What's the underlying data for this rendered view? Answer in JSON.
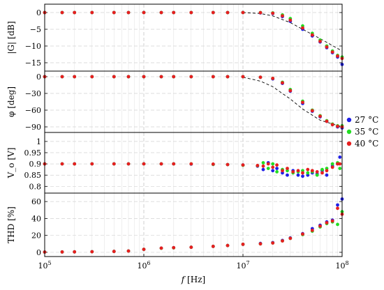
{
  "chart_data": {
    "type": "scatter",
    "x_scale": "log",
    "x_range_hz": [
      100000,
      100000000
    ],
    "x_ticks": [
      {
        "value": 100000,
        "base": "10",
        "exp": "5"
      },
      {
        "value": 1000000,
        "base": "10",
        "exp": "6"
      },
      {
        "value": 10000000,
        "base": "10",
        "exp": "7"
      },
      {
        "value": 100000000,
        "base": "10",
        "exp": "8"
      }
    ],
    "xlabel": {
      "italic": "f",
      "rest": " [Hz]"
    },
    "legend": {
      "placement": "right",
      "entries": [
        {
          "label": "27 °C",
          "color": "#1f1fe6"
        },
        {
          "label": "35 °C",
          "color": "#22dd22"
        },
        {
          "label": "40 °C",
          "color": "#e61f1f"
        }
      ]
    },
    "panels": [
      {
        "id": "gain",
        "ylabel": "|G| [dB]",
        "ylim": [
          -17.5,
          2.5
        ],
        "yticks": [
          "0",
          "−5",
          "−10",
          "−15"
        ],
        "ytick_values": [
          0,
          -5,
          -10,
          -15
        ],
        "reference": {
          "x": [
            10000000,
            15000000,
            20000000,
            30000000,
            40000000,
            60000000,
            100000000
          ],
          "y": [
            0,
            -0.3,
            -1.0,
            -3.0,
            -5.0,
            -7.8,
            -11.5
          ]
        },
        "series": [
          {
            "name": "27 °C",
            "x": [
              100000,
              150000,
              200000,
              300000,
              500000,
              700000,
              1000000,
              1500000,
              2000000,
              3000000,
              5000000,
              7000000,
              10000000,
              15000000,
              20000000,
              25000000,
              30000000,
              40000000,
              50000000,
              60000000,
              70000000,
              80000000,
              90000000,
              100000000
            ],
            "y": [
              0,
              0,
              0,
              0,
              0,
              0,
              0,
              0,
              0,
              0,
              0,
              0,
              0,
              -0.1,
              -0.3,
              -1.2,
              -2.6,
              -5.0,
              -7.0,
              -8.8,
              -10.5,
              -12.0,
              -13.3,
              -15.5
            ]
          },
          {
            "name": "35 °C",
            "x": [
              100000,
              150000,
              200000,
              300000,
              500000,
              700000,
              1000000,
              1500000,
              2000000,
              3000000,
              5000000,
              7000000,
              10000000,
              15000000,
              20000000,
              25000000,
              30000000,
              40000000,
              50000000,
              60000000,
              70000000,
              80000000,
              90000000,
              100000000
            ],
            "y": [
              0,
              0,
              0,
              0,
              0,
              0,
              0,
              0,
              0,
              0,
              0,
              0,
              0,
              0,
              -0.1,
              -0.7,
              -1.8,
              -4.0,
              -6.2,
              -8.2,
              -10.0,
              -11.5,
              -12.8,
              -13.3
            ]
          },
          {
            "name": "40 °C",
            "x": [
              100000,
              150000,
              200000,
              300000,
              500000,
              700000,
              1000000,
              1500000,
              2000000,
              3000000,
              5000000,
              7000000,
              10000000,
              15000000,
              20000000,
              25000000,
              30000000,
              40000000,
              50000000,
              60000000,
              70000000,
              80000000,
              90000000,
              100000000
            ],
            "y": [
              0,
              0,
              0,
              0,
              0,
              0,
              0,
              0,
              0,
              0,
              0,
              0,
              0,
              -0.05,
              -0.2,
              -1.0,
              -2.3,
              -4.6,
              -6.7,
              -8.6,
              -10.3,
              -11.8,
              -13.0,
              -13.7
            ]
          }
        ]
      },
      {
        "id": "phase",
        "ylabel": "φ [deg]",
        "ylim": [
          -100,
          10
        ],
        "yticks": [
          "0",
          "−30",
          "−60",
          "−90"
        ],
        "ytick_values": [
          0,
          -30,
          -60,
          -90
        ],
        "reference": {
          "x": [
            10000000,
            15000000,
            20000000,
            30000000,
            40000000,
            60000000,
            100000000
          ],
          "y": [
            -1,
            -8,
            -18,
            -40,
            -58,
            -78,
            -90
          ]
        },
        "series": [
          {
            "name": "27 °C",
            "x": [
              100000,
              150000,
              200000,
              300000,
              500000,
              700000,
              1000000,
              1500000,
              2000000,
              3000000,
              5000000,
              7000000,
              10000000,
              15000000,
              20000000,
              25000000,
              30000000,
              40000000,
              50000000,
              60000000,
              70000000,
              80000000,
              90000000,
              100000000
            ],
            "y": [
              0,
              0,
              0,
              0,
              0,
              0,
              0,
              0,
              0,
              0,
              0,
              0,
              0,
              -1,
              -4,
              -12,
              -26,
              -48,
              -62,
              -72,
              -80,
              -86,
              -90,
              -92
            ]
          },
          {
            "name": "35 °C",
            "x": [
              100000,
              150000,
              200000,
              300000,
              500000,
              700000,
              1000000,
              1500000,
              2000000,
              3000000,
              5000000,
              7000000,
              10000000,
              15000000,
              20000000,
              25000000,
              30000000,
              40000000,
              50000000,
              60000000,
              70000000,
              80000000,
              90000000,
              100000000
            ],
            "y": [
              0,
              0,
              0,
              0,
              0,
              0,
              0,
              0,
              0,
              0,
              0,
              0,
              0,
              -1,
              -3,
              -10,
              -23,
              -44,
              -60,
              -70,
              -79,
              -85,
              -88,
              -88
            ]
          },
          {
            "name": "40 °C",
            "x": [
              100000,
              150000,
              200000,
              300000,
              500000,
              700000,
              1000000,
              1500000,
              2000000,
              3000000,
              5000000,
              7000000,
              10000000,
              15000000,
              20000000,
              25000000,
              30000000,
              40000000,
              50000000,
              60000000,
              70000000,
              80000000,
              90000000,
              100000000
            ],
            "y": [
              0,
              0,
              0,
              0,
              0,
              0,
              0,
              0,
              0,
              0,
              0,
              0,
              0,
              -1,
              -3,
              -11,
              -25,
              -46,
              -61,
              -71,
              -80,
              -86,
              -89,
              -90
            ]
          }
        ]
      },
      {
        "id": "vo",
        "ylabel": "V_o [V]",
        "ylim": [
          0.77,
          1.04
        ],
        "yticks": [
          "0.8",
          "0.85",
          "0.9",
          "0.95",
          "1"
        ],
        "ytick_values": [
          0.8,
          0.85,
          0.9,
          0.95,
          1.0
        ],
        "series": [
          {
            "name": "27 °C",
            "x": [
              100000,
              150000,
              200000,
              300000,
              500000,
              700000,
              1000000,
              1500000,
              2000000,
              3000000,
              5000000,
              7000000,
              10000000,
              14000000,
              16000000,
              18000000,
              20000000,
              22000000,
              25000000,
              28000000,
              32000000,
              36000000,
              40000000,
              45000000,
              50000000,
              56000000,
              63000000,
              70000000,
              80000000,
              90000000,
              95000000
            ],
            "y": [
              0.9,
              0.9,
              0.9,
              0.9,
              0.9,
              0.9,
              0.9,
              0.9,
              0.9,
              0.899,
              0.898,
              0.897,
              0.895,
              0.89,
              0.875,
              0.905,
              0.87,
              0.88,
              0.86,
              0.85,
              0.87,
              0.85,
              0.845,
              0.85,
              0.86,
              0.855,
              0.87,
              0.85,
              0.89,
              0.9,
              0.93
            ]
          },
          {
            "name": "35 °C",
            "x": [
              100000,
              150000,
              200000,
              300000,
              500000,
              700000,
              1000000,
              1500000,
              2000000,
              3000000,
              5000000,
              7000000,
              10000000,
              14000000,
              16000000,
              18000000,
              20000000,
              22000000,
              25000000,
              28000000,
              32000000,
              36000000,
              40000000,
              45000000,
              50000000,
              56000000,
              63000000,
              70000000,
              80000000,
              90000000,
              95000000
            ],
            "y": [
              0.9,
              0.9,
              0.9,
              0.9,
              0.9,
              0.9,
              0.9,
              0.9,
              0.9,
              0.9,
              0.898,
              0.897,
              0.894,
              0.892,
              0.905,
              0.88,
              0.9,
              0.865,
              0.875,
              0.87,
              0.86,
              0.865,
              0.87,
              0.86,
              0.865,
              0.85,
              0.875,
              0.88,
              0.9,
              0.905,
              0.88
            ]
          },
          {
            "name": "40 °C",
            "x": [
              100000,
              150000,
              200000,
              300000,
              500000,
              700000,
              1000000,
              1500000,
              2000000,
              3000000,
              5000000,
              7000000,
              10000000,
              14000000,
              16000000,
              18000000,
              20000000,
              22000000,
              25000000,
              28000000,
              32000000,
              36000000,
              40000000,
              45000000,
              50000000,
              56000000,
              63000000,
              70000000,
              80000000,
              90000000,
              95000000
            ],
            "y": [
              0.9,
              0.9,
              0.9,
              0.9,
              0.9,
              0.9,
              0.9,
              0.9,
              0.9,
              0.9,
              0.899,
              0.897,
              0.895,
              0.893,
              0.89,
              0.9,
              0.885,
              0.895,
              0.87,
              0.88,
              0.865,
              0.87,
              0.86,
              0.875,
              0.87,
              0.865,
              0.86,
              0.87,
              0.885,
              0.9,
              0.9
            ]
          }
        ]
      },
      {
        "id": "thd",
        "ylabel": "THD [%]",
        "ylim": [
          -5,
          70
        ],
        "yticks": [
          "0",
          "20",
          "40",
          "60"
        ],
        "ytick_values": [
          0,
          20,
          40,
          60
        ],
        "series": [
          {
            "name": "27 °C",
            "x": [
              100000,
              150000,
              200000,
              300000,
              500000,
              700000,
              1000000,
              1500000,
              2000000,
              3000000,
              5000000,
              7000000,
              10000000,
              15000000,
              20000000,
              25000000,
              30000000,
              40000000,
              50000000,
              60000000,
              70000000,
              80000000,
              90000000,
              100000000
            ],
            "y": [
              0.3,
              0.4,
              0.5,
              0.7,
              1.0,
              1.5,
              3.5,
              5.0,
              5.5,
              6.0,
              7.0,
              8.0,
              9.5,
              10.5,
              11.5,
              14.0,
              17.0,
              22.0,
              28.0,
              32.0,
              36.0,
              38.0,
              56.0,
              63.0
            ]
          },
          {
            "name": "35 °C",
            "x": [
              100000,
              150000,
              200000,
              300000,
              500000,
              700000,
              1000000,
              1500000,
              2000000,
              3000000,
              5000000,
              7000000,
              10000000,
              15000000,
              20000000,
              25000000,
              30000000,
              40000000,
              50000000,
              60000000,
              70000000,
              80000000,
              90000000,
              100000000
            ],
            "y": [
              0.3,
              0.4,
              0.5,
              0.7,
              1.0,
              1.5,
              3.5,
              4.8,
              5.3,
              6.0,
              7.0,
              8.0,
              9.5,
              10.0,
              11.0,
              13.5,
              16.5,
              21.0,
              25.0,
              30.0,
              34.0,
              36.0,
              33.0,
              48.0
            ]
          },
          {
            "name": "40 °C",
            "x": [
              100000,
              150000,
              200000,
              300000,
              500000,
              700000,
              1000000,
              1500000,
              2000000,
              3000000,
              5000000,
              7000000,
              10000000,
              15000000,
              20000000,
              25000000,
              30000000,
              40000000,
              50000000,
              60000000,
              70000000,
              80000000,
              90000000,
              100000000
            ],
            "y": [
              0.3,
              0.4,
              0.5,
              0.7,
              1.0,
              1.5,
              3.5,
              5.0,
              5.5,
              6.0,
              7.0,
              8.0,
              9.5,
              10.0,
              11.0,
              13.5,
              16.5,
              21.5,
              26.0,
              31.0,
              35.0,
              37.0,
              52.0,
              45.0
            ]
          }
        ]
      }
    ]
  }
}
